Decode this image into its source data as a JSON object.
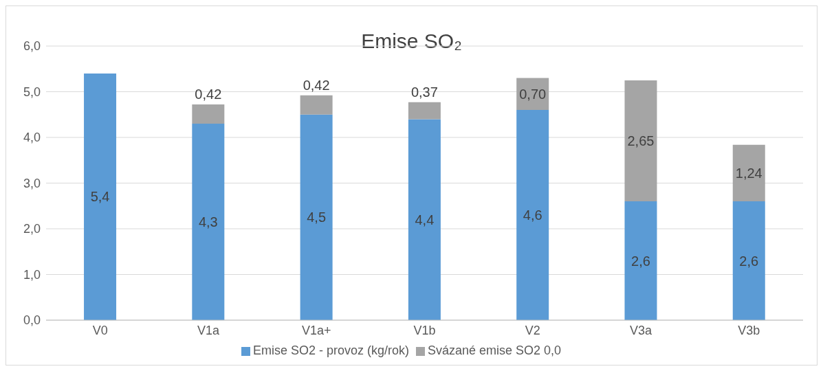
{
  "chart_data": {
    "type": "bar",
    "title": "Emise SO₂",
    "categories": [
      "V0",
      "V1a",
      "V1a+",
      "V1b",
      "V2",
      "V3a",
      "V3b"
    ],
    "stacked": true,
    "ylim": [
      0,
      6
    ],
    "yticks": [
      {
        "value": 0,
        "label": "0,0"
      },
      {
        "value": 1,
        "label": "1,0"
      },
      {
        "value": 2,
        "label": "2,0"
      },
      {
        "value": 3,
        "label": "3,0"
      },
      {
        "value": 4,
        "label": "4,0"
      },
      {
        "value": 5,
        "label": "5,0"
      },
      {
        "value": 6,
        "label": "6,0"
      }
    ],
    "grid": "y",
    "legend": "bottom",
    "series": [
      {
        "name": "Emise SO2 - provoz (kg/rok)",
        "color": "#5b9bd5",
        "values": [
          5.4,
          4.3,
          4.5,
          4.4,
          4.6,
          2.6,
          2.6
        ],
        "value_labels": [
          "5,4",
          "4,3",
          "4,5",
          "4,4",
          "4,6",
          "2,6",
          "2,6"
        ]
      },
      {
        "name": "Svázané emise SO2 0,0",
        "color": "#a5a5a5",
        "values": [
          null,
          0.42,
          0.42,
          0.37,
          0.7,
          2.65,
          1.24
        ],
        "value_labels": [
          null,
          "0,42",
          "0,42",
          "0,37",
          "0,70",
          "2,65",
          "1,24"
        ]
      }
    ]
  }
}
